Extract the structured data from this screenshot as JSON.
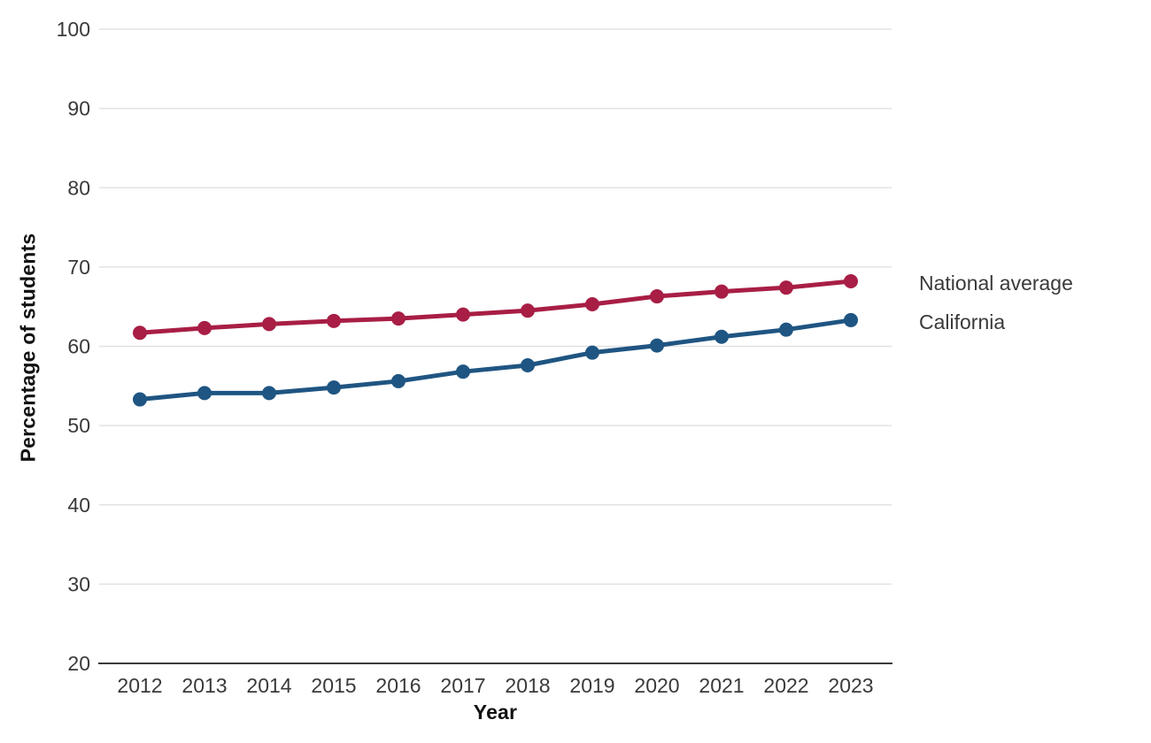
{
  "chart_data": {
    "type": "line",
    "title": "",
    "xlabel": "Year",
    "ylabel": "Percentage of students",
    "categories": [
      "2012",
      "2013",
      "2014",
      "2015",
      "2016",
      "2017",
      "2018",
      "2019",
      "2020",
      "2021",
      "2022",
      "2023"
    ],
    "series": [
      {
        "name": "National average",
        "color": "#a81e45",
        "values": [
          61.7,
          62.3,
          62.8,
          63.2,
          63.5,
          64.0,
          64.5,
          65.3,
          66.3,
          66.9,
          67.4,
          68.2
        ]
      },
      {
        "name": "California",
        "color": "#1f5582",
        "values": [
          53.3,
          54.1,
          54.1,
          54.8,
          55.6,
          56.8,
          57.6,
          59.2,
          60.1,
          61.2,
          62.1,
          63.3
        ]
      }
    ],
    "ylim": [
      20,
      100
    ],
    "ytick_step": 10,
    "yticks": [
      20,
      30,
      40,
      50,
      60,
      70,
      80,
      90,
      100
    ],
    "grid": "horizontal",
    "legend_position": "right of line ends"
  },
  "palette": {
    "grid_color": "#e2e2e2",
    "axis_color": "#3a3a3a",
    "tick_text_color": "#3a3a3a",
    "title_text_color": "#111111",
    "background": "#ffffff"
  }
}
